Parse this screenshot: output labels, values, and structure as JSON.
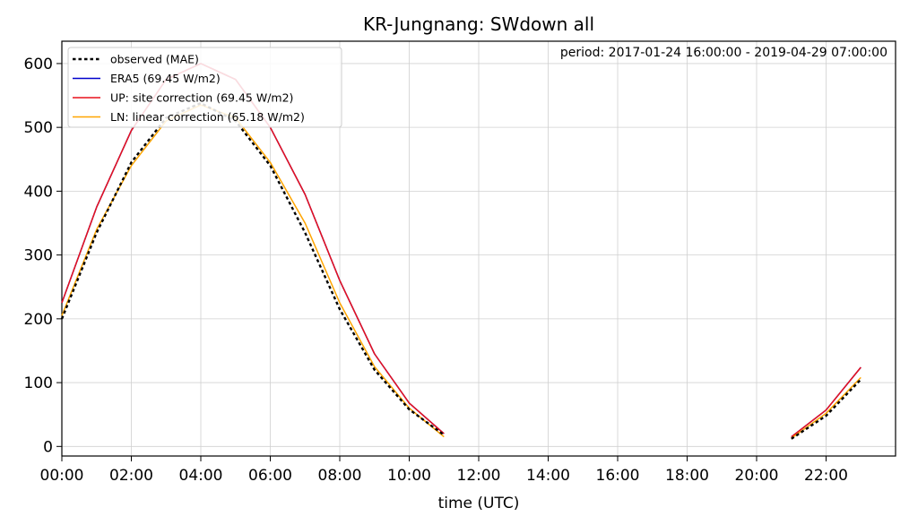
{
  "chart_data": {
    "type": "line",
    "title": "KR-Jungnang: SWdown all",
    "xlabel": "time (UTC)",
    "ylabel": "",
    "annotation": "period: 2017-01-24 16:00:00 - 2019-04-29 07:00:00",
    "xlim": [
      0,
      24
    ],
    "ylim": [
      -15,
      635
    ],
    "x_ticks": [
      0,
      2,
      4,
      6,
      8,
      10,
      12,
      14,
      16,
      18,
      20,
      22
    ],
    "x_tick_labels": [
      "00:00",
      "02:00",
      "04:00",
      "06:00",
      "08:00",
      "10:00",
      "12:00",
      "14:00",
      "16:00",
      "18:00",
      "20:00",
      "22:00"
    ],
    "y_ticks": [
      0,
      100,
      200,
      300,
      400,
      500,
      600
    ],
    "y_tick_labels": [
      "0",
      "100",
      "200",
      "300",
      "400",
      "500",
      "600"
    ],
    "grid": true,
    "legend_position": "top-left",
    "series": [
      {
        "name": "observed (MAE)",
        "color": "#000000",
        "style": "dotted",
        "segments": [
          [
            [
              0,
              200
            ],
            [
              1,
              335
            ],
            [
              2,
              445
            ],
            [
              3,
              515
            ],
            [
              4,
              538
            ],
            [
              5,
              510
            ],
            [
              6,
              440
            ],
            [
              7,
              335
            ],
            [
              8,
              215
            ],
            [
              9,
              120
            ],
            [
              10,
              58
            ],
            [
              11,
              18
            ]
          ],
          [
            [
              21,
              12
            ],
            [
              22,
              48
            ],
            [
              23,
              105
            ]
          ]
        ]
      },
      {
        "name": "ERA5 (69.45 W/m2)",
        "color": "#0000cc",
        "style": "solid",
        "segments": [
          [
            [
              0,
              225
            ],
            [
              1,
              375
            ],
            [
              2,
              495
            ],
            [
              3,
              575
            ],
            [
              4,
              600
            ],
            [
              5,
              575
            ],
            [
              6,
              500
            ],
            [
              7,
              395
            ],
            [
              8,
              260
            ],
            [
              9,
              145
            ],
            [
              10,
              68
            ],
            [
              11,
              20
            ]
          ],
          [
            [
              21,
              15
            ],
            [
              22,
              57
            ],
            [
              23,
              124
            ]
          ]
        ]
      },
      {
        "name": "UP: site correction (69.45 W/m2)",
        "color": "#e8111c",
        "style": "solid",
        "segments": [
          [
            [
              0,
              225
            ],
            [
              1,
              375
            ],
            [
              2,
              495
            ],
            [
              3,
              575
            ],
            [
              4,
              600
            ],
            [
              5,
              575
            ],
            [
              6,
              500
            ],
            [
              7,
              395
            ],
            [
              8,
              260
            ],
            [
              9,
              145
            ],
            [
              10,
              68
            ],
            [
              11,
              20
            ]
          ],
          [
            [
              21,
              15
            ],
            [
              22,
              57
            ],
            [
              23,
              124
            ]
          ]
        ]
      },
      {
        "name": "LN: linear correction (65.18 W/m2)",
        "color": "#ffa500",
        "style": "solid",
        "segments": [
          [
            [
              0,
              205
            ],
            [
              1,
              340
            ],
            [
              2,
              440
            ],
            [
              3,
              510
            ],
            [
              4,
              535
            ],
            [
              5,
              515
            ],
            [
              6,
              445
            ],
            [
              7,
              350
            ],
            [
              8,
              225
            ],
            [
              9,
              125
            ],
            [
              10,
              60
            ],
            [
              11,
              15
            ]
          ],
          [
            [
              21,
              13
            ],
            [
              22,
              52
            ],
            [
              23,
              108
            ]
          ]
        ]
      }
    ]
  }
}
